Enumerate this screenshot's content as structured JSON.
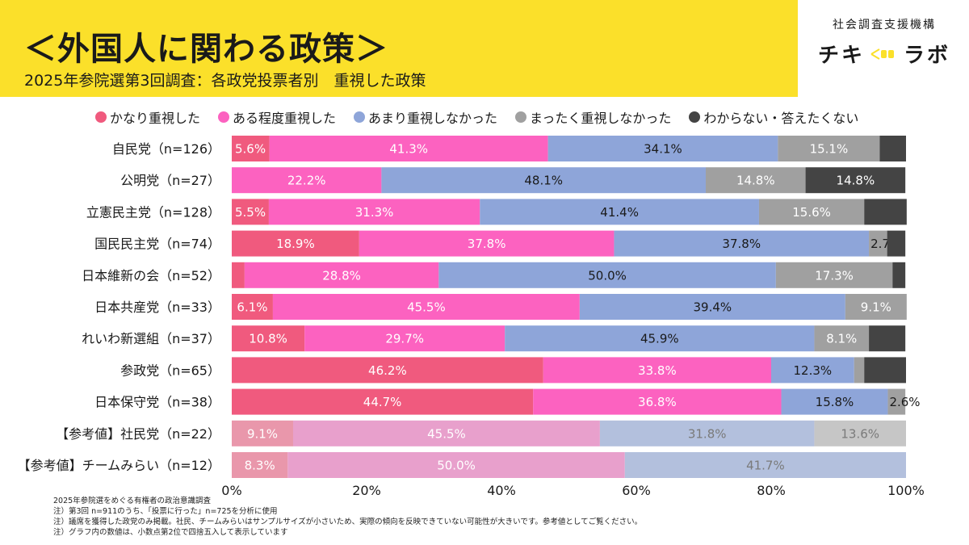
{
  "header": {
    "title": "＜外国人に関わる政策＞",
    "subtitle": "2025年参院選第3回調査：各政党投票者別　重視した政策"
  },
  "brand": {
    "org": "社会調査支援機構",
    "logo_left": "チキ",
    "logo_right": "ラボ"
  },
  "notes": [
    "2025年参院選をめぐる有権者の政治意識調査",
    "注）第3回 n=911のうち、「投票に行った」n=725を分析に使用",
    "注）議席を獲得した政党のみ掲載。社民、チームみらいはサンプルサイズが小さいため、実際の傾向を反映できていない可能性が大きいです。参考値としてご覧ください。",
    "注）グラフ内の数値は、小数点第2位で四捨五入して表示しています"
  ],
  "chart_data": {
    "type": "bar",
    "orientation": "horizontal-stacked-100",
    "xlim": [
      0,
      100
    ],
    "x_ticks": [
      "0%",
      "20%",
      "40%",
      "60%",
      "80%",
      "100%"
    ],
    "legend_position": "top",
    "series": [
      {
        "name": "かなり重視した",
        "color": "#f05a7e",
        "faded_color": "#e997ab"
      },
      {
        "name": "ある程度重視した",
        "color": "#fc62c0",
        "faded_color": "#e8a0cc"
      },
      {
        "name": "あまり重視しなかった",
        "color": "#8ea5d9",
        "faded_color": "#b3c0dd"
      },
      {
        "name": "まったく重視しなかった",
        "color": "#a0a0a0",
        "faded_color": "#c6c6c6"
      },
      {
        "name": "わからない・答えたくない",
        "color": "#444444",
        "faded_color": "#8a8a8a"
      }
    ],
    "categories": [
      {
        "label": "自民党（n=126）",
        "reference": false,
        "values": [
          5.6,
          41.3,
          34.1,
          15.1,
          3.9
        ],
        "labels": [
          "5.6%",
          "41.3%",
          "34.1%",
          "15.1%",
          ""
        ]
      },
      {
        "label": "公明党（n=27）",
        "reference": false,
        "values": [
          0,
          22.2,
          48.1,
          14.8,
          14.8
        ],
        "labels": [
          "",
          "22.2%",
          "48.1%",
          "14.8%",
          "14.8%"
        ]
      },
      {
        "label": "立憲民主党（n=128）",
        "reference": false,
        "values": [
          5.5,
          31.3,
          41.4,
          15.6,
          6.3
        ],
        "labels": [
          "5.5%",
          "31.3%",
          "41.4%",
          "15.6%",
          ""
        ]
      },
      {
        "label": "国民民主党（n=74）",
        "reference": false,
        "values": [
          18.9,
          37.8,
          37.8,
          2.7,
          2.7
        ],
        "labels": [
          "18.9%",
          "37.8%",
          "37.8%",
          "2.7%",
          ""
        ]
      },
      {
        "label": "日本維新の会（n=52）",
        "reference": false,
        "values": [
          1.9,
          28.8,
          50.0,
          17.3,
          1.9
        ],
        "labels": [
          "",
          "28.8%",
          "50.0%",
          "17.3%",
          ""
        ]
      },
      {
        "label": "日本共産党（n=33）",
        "reference": false,
        "values": [
          6.1,
          45.5,
          39.4,
          9.1,
          0
        ],
        "labels": [
          "6.1%",
          "45.5%",
          "39.4%",
          "9.1%",
          ""
        ]
      },
      {
        "label": "れいわ新選組（n=37）",
        "reference": false,
        "values": [
          10.8,
          29.7,
          45.9,
          8.1,
          5.4
        ],
        "labels": [
          "10.8%",
          "29.7%",
          "45.9%",
          "8.1%",
          ""
        ]
      },
      {
        "label": "参政党（n=65）",
        "reference": false,
        "values": [
          46.2,
          33.8,
          12.3,
          1.5,
          6.2
        ],
        "labels": [
          "46.2%",
          "33.8%",
          "12.3%",
          "",
          ""
        ]
      },
      {
        "label": "日本保守党（n=38）",
        "reference": false,
        "values": [
          44.7,
          36.8,
          15.8,
          2.6,
          0
        ],
        "labels": [
          "44.7%",
          "36.8%",
          "15.8%",
          "2.6%",
          ""
        ]
      },
      {
        "label": "【参考値】社民党（n=22）",
        "reference": true,
        "values": [
          9.1,
          45.5,
          31.8,
          13.6,
          0
        ],
        "labels": [
          "9.1%",
          "45.5%",
          "31.8%",
          "13.6%",
          ""
        ]
      },
      {
        "label": "【参考値】チームみらい（n=12）",
        "reference": true,
        "values": [
          8.3,
          50.0,
          41.7,
          0,
          0
        ],
        "labels": [
          "8.3%",
          "50.0%",
          "41.7%",
          "",
          ""
        ]
      }
    ]
  }
}
